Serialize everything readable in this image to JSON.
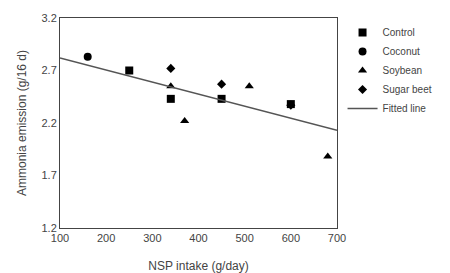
{
  "chart_data": {
    "type": "scatter",
    "xlabel": "NSP intake (g/day)",
    "ylabel": "Ammonia emission (g/16 d)",
    "xlim": [
      100,
      700
    ],
    "ylim": [
      1.2,
      3.2
    ],
    "xticks": [
      100,
      200,
      300,
      400,
      500,
      600,
      700
    ],
    "yticks": [
      1.2,
      1.7,
      2.2,
      2.7,
      3.2
    ],
    "grid": false,
    "legend": "upper right",
    "series": [
      {
        "name": "Control",
        "color": "#000000",
        "marker": "square",
        "x": [
          250,
          340,
          450,
          600
        ],
        "values": [
          2.7,
          2.43,
          2.43,
          2.38
        ]
      },
      {
        "name": "Coconut",
        "color": "#000000",
        "marker": "circle",
        "x": [
          160
        ],
        "values": [
          2.83
        ]
      },
      {
        "name": "Soybean",
        "color": "#000000",
        "marker": "triangle-up",
        "x": [
          340,
          370,
          510,
          680
        ],
        "values": [
          2.55,
          2.22,
          2.55,
          1.88
        ]
      },
      {
        "name": "Sugar beet",
        "color": "#000000",
        "marker": "diamond",
        "x": [
          340,
          450,
          600
        ],
        "values": [
          2.72,
          2.57,
          2.37
        ]
      },
      {
        "name": "Fitted line",
        "type": "line",
        "color": "#555555",
        "line_style": "solid",
        "x": [
          100,
          700
        ],
        "values": [
          2.82,
          2.13
        ]
      }
    ]
  }
}
